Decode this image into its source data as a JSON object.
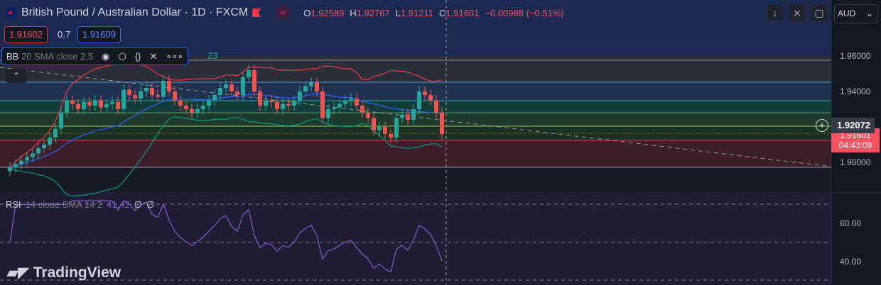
{
  "header": {
    "title": "British Pound / Australian Dollar · 1D · FXCM",
    "open_label": "O",
    "open": "1.92589",
    "high_label": "H",
    "high": "1.92767",
    "low_label": "L",
    "low": "1.91211",
    "close_label": "C",
    "close": "1.91601",
    "change": "−0.00988 (−0.51%)"
  },
  "trade": {
    "sell": "1.91602",
    "spread": "0.7",
    "buy": "1.91609"
  },
  "indicator_bb": {
    "name": "BB",
    "params": "20 SMA close 2.5",
    "tail": "23"
  },
  "indicator_rsi": {
    "name": "RSI",
    "params": "14 close SMA 14 2",
    "value": "41.42",
    "v2": "∅",
    "v3": "∅"
  },
  "toolbar": {
    "currency": "AUD"
  },
  "price_axis": {
    "labels": [
      "1.96000",
      "1.94000",
      "1.90000"
    ],
    "crosshair_price": "1.92072",
    "last_price": "1.91601",
    "countdown": "04:43:09"
  },
  "rsi_axis": {
    "labels": [
      "60.00",
      "40.00"
    ]
  },
  "branding": "TradingView",
  "colors": {
    "up": "#26a69a",
    "down": "#ef5350",
    "bb_upper": "#f23645",
    "bb_basis": "#2962ff",
    "bb_lower": "#089981",
    "rsi": "#7e57c2"
  },
  "chart_data": {
    "type": "candlestick",
    "price_range": [
      1.88,
      1.99
    ],
    "closes": [
      1.897,
      1.899,
      1.901,
      1.903,
      1.905,
      1.908,
      1.91,
      1.914,
      1.919,
      1.928,
      1.935,
      1.933,
      1.93,
      1.934,
      1.932,
      1.935,
      1.931,
      1.933,
      1.934,
      1.93,
      1.941,
      1.938,
      1.936,
      1.94,
      1.942,
      1.938,
      1.937,
      1.946,
      1.94,
      1.935,
      1.932,
      1.93,
      1.928,
      1.93,
      1.932,
      1.935,
      1.938,
      1.942,
      1.944,
      1.94,
      1.938,
      1.948,
      1.952,
      1.94,
      1.932,
      1.935,
      1.934,
      1.93,
      1.933,
      1.932,
      1.935,
      1.94,
      1.943,
      1.945,
      1.94,
      1.925,
      1.93,
      1.931,
      1.933,
      1.935,
      1.936,
      1.932,
      1.928,
      1.925,
      1.918,
      1.92,
      1.916,
      1.914,
      1.925,
      1.927,
      1.924,
      1.93,
      1.94,
      1.938,
      1.935,
      1.928,
      1.916
    ]
  }
}
